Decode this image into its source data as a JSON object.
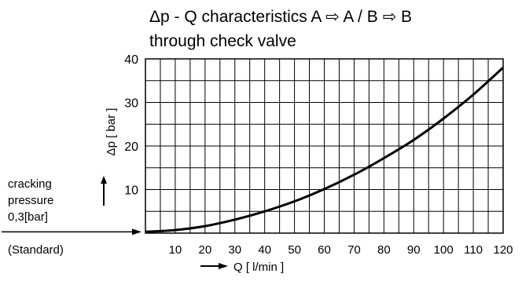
{
  "chart_data": {
    "type": "line",
    "title_line1": "Δp - Q  characteristics A ⇨ A / B ⇨ B",
    "title_line2": "through check valve",
    "xlabel": "Q  [ l/min ]",
    "ylabel": "Δp [ bar ]",
    "xlim": [
      0,
      120
    ],
    "ylim": [
      0,
      40
    ],
    "x_ticks": [
      "10",
      "20",
      "30",
      "40",
      "50",
      "60",
      "70",
      "80",
      "90",
      "100",
      "110",
      "120"
    ],
    "y_ticks": [
      "10",
      "20",
      "30",
      "40"
    ],
    "grid": true,
    "series": [
      {
        "x": [
          0,
          10,
          20,
          30,
          40,
          50,
          60,
          70,
          80,
          90,
          100,
          110,
          120
        ],
        "y": [
          0.3,
          0.7,
          1.6,
          3.1,
          5.0,
          7.3,
          10.1,
          13.4,
          17.2,
          21.4,
          26.3,
          31.8,
          38.0
        ]
      }
    ],
    "annotation": {
      "lines": [
        "cracking",
        "pressure",
        "0,3[bar]"
      ],
      "note": "(Standard)",
      "value": 0.3
    },
    "colors": {
      "line": "#000000",
      "grid": "#000000",
      "background": "#ffffff"
    }
  }
}
